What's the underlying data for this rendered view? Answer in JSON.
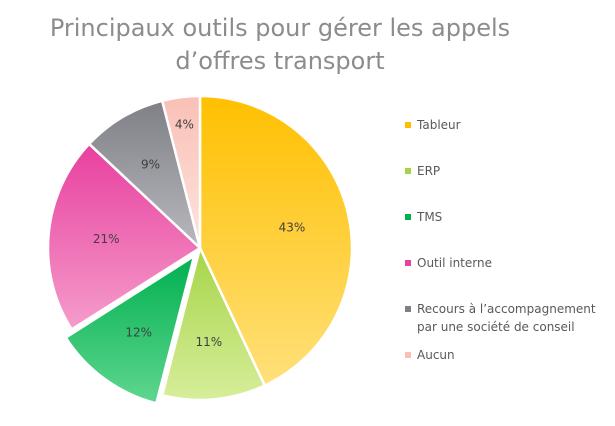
{
  "chart_data": {
    "type": "pie",
    "title_lines": [
      "Principaux outils pour gérer les appels",
      "d’offres transport"
    ],
    "slices": [
      {
        "name": "Tableur",
        "value": 43,
        "label": "43%",
        "color": "#ffc000",
        "light": "#ffe07a"
      },
      {
        "name": "ERP",
        "value": 11,
        "label": "11%",
        "color": "#a6d448",
        "light": "#d6ee9a"
      },
      {
        "name": "TMS",
        "value": 12,
        "label": "12%",
        "color": "#00b050",
        "light": "#5fd68f"
      },
      {
        "name": "Outil interne",
        "value": 21,
        "label": "21%",
        "color": "#e8409e",
        "light": "#f59ccb"
      },
      {
        "name": "Recours à l’accompagnement par une société de conseil",
        "value": 9,
        "label": "9%",
        "color": "#7f7f87",
        "light": "#b8b8be"
      },
      {
        "name": "Aucun",
        "value": 4,
        "label": "4%",
        "color": "#f9c0b6",
        "light": "#fde4de"
      }
    ],
    "legend": {
      "position": "right",
      "items": [
        {
          "lines": [
            "Tableur"
          ]
        },
        {
          "lines": [
            "ERP"
          ]
        },
        {
          "lines": [
            "TMS"
          ]
        },
        {
          "lines": [
            "Outil interne"
          ]
        },
        {
          "lines": [
            "Recours à l’accompagnement",
            "par une société de conseil"
          ]
        },
        {
          "lines": [
            "Aucun"
          ]
        }
      ]
    }
  }
}
